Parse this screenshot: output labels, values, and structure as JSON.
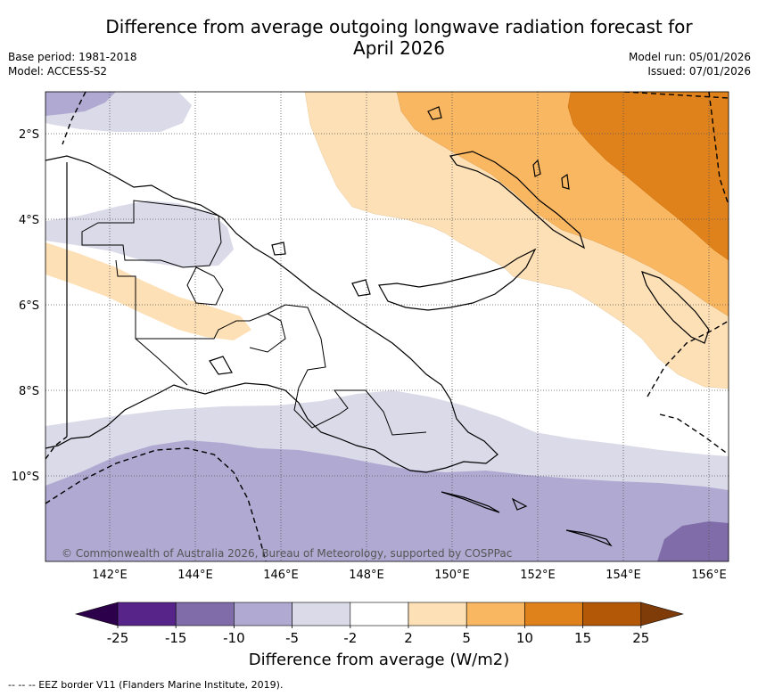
{
  "title_line1": "Difference from average outgoing longwave radiation forecast for",
  "title_line2": "April 2026",
  "base_period": "Base period: 1981-2018",
  "model": "Model: ACCESS-S2",
  "model_run": "Model run: 05/01/2026",
  "issued": "Issued: 07/01/2026",
  "copyright": "© Commonwealth of Australia 2026, Bureau of Meteorology, supported by COSPPac",
  "map": {
    "lon_labels": [
      "142°E",
      "144°E",
      "146°E",
      "148°E",
      "150°E",
      "152°E",
      "154°E",
      "156°E"
    ],
    "lat_labels": [
      "2°S",
      "4°S",
      "6°S",
      "8°S",
      "10°S"
    ]
  },
  "colorbar": {
    "label": "Difference from average (W/m2)",
    "ticks": [
      "-25",
      "-15",
      "-10",
      "-5",
      "-2",
      "2",
      "5",
      "10",
      "15",
      "25"
    ],
    "colors": [
      "#57258a",
      "#7f6ca8",
      "#b0a9d1",
      "#dadae9",
      "#ffffff",
      "#fde0b6",
      "#fab761",
      "#e0821c",
      "#b35806"
    ],
    "low_extend_color": "#2d004b",
    "high_extend_color": "#7f3b08"
  },
  "footnote": "--  --  -- EEZ border V11 (Flanders Marine Institute, 2019)."
}
